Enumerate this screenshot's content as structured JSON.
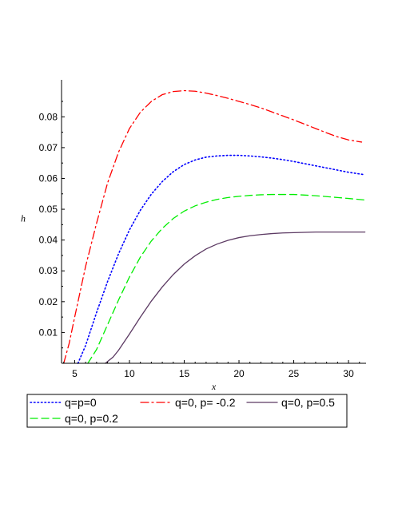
{
  "chart_data": {
    "type": "line",
    "xlabel": "x",
    "ylabel": "h",
    "xlim": [
      3.8,
      31.6
    ],
    "ylim": [
      0,
      0.092
    ],
    "x_ticks": [
      5,
      10,
      15,
      20,
      25,
      30
    ],
    "y_ticks": [
      0.01,
      0.02,
      0.03,
      0.04,
      0.05,
      0.06,
      0.07,
      0.08
    ],
    "y_tick_labels": [
      "0.01",
      "0.02",
      "0.03",
      "0.04",
      "0.05",
      "0.06",
      "0.07",
      "0.08"
    ],
    "legend_position": "bottom",
    "series": [
      {
        "name": "q=p=0",
        "color": "#0000ff",
        "style": "dotted",
        "x": [
          5.3,
          6,
          7,
          8,
          9,
          10,
          11,
          12,
          13,
          14,
          15,
          16,
          17,
          18,
          19,
          20,
          21,
          22,
          23,
          24,
          25,
          26,
          27,
          28,
          29,
          30,
          31.5
        ],
        "y": [
          0,
          0.0058,
          0.0165,
          0.0265,
          0.0355,
          0.0433,
          0.0497,
          0.0549,
          0.059,
          0.0622,
          0.0645,
          0.066,
          0.0669,
          0.0673,
          0.0675,
          0.0675,
          0.0673,
          0.067,
          0.0666,
          0.0661,
          0.0655,
          0.0648,
          0.0641,
          0.0634,
          0.0627,
          0.062,
          0.0612
        ]
      },
      {
        "name": "q=0, p= -0.2",
        "color": "#ff0000",
        "style": "dashdot",
        "x": [
          4.0,
          4.5,
          5,
          6,
          7,
          8,
          9,
          10,
          11,
          12,
          13,
          14,
          15,
          16,
          17,
          18,
          19,
          20,
          21,
          22,
          23,
          24,
          25,
          26,
          27,
          28,
          29,
          30,
          31.2
        ],
        "y": [
          0,
          0.0065,
          0.015,
          0.0315,
          0.0455,
          0.0585,
          0.0685,
          0.0762,
          0.0815,
          0.085,
          0.0872,
          0.0882,
          0.0885,
          0.0883,
          0.0877,
          0.0869,
          0.086,
          0.085,
          0.084,
          0.0829,
          0.0816,
          0.0803,
          0.079,
          0.0776,
          0.0762,
          0.0748,
          0.0735,
          0.0725,
          0.0718
        ]
      },
      {
        "name": "q=0, p=0.5",
        "color": "#5c3a63",
        "style": "solid",
        "x": [
          7.8,
          8.5,
          9,
          10,
          11,
          12,
          13,
          14,
          15,
          16,
          17,
          18,
          19,
          20,
          21,
          22,
          23,
          24,
          25,
          26,
          27,
          28,
          29,
          30,
          31.5
        ],
        "y": [
          0,
          0.002,
          0.0042,
          0.0095,
          0.015,
          0.0202,
          0.0248,
          0.0288,
          0.0322,
          0.0349,
          0.0371,
          0.0387,
          0.0399,
          0.0408,
          0.0414,
          0.0418,
          0.0421,
          0.0423,
          0.0424,
          0.0425,
          0.0426,
          0.0426,
          0.0426,
          0.0426,
          0.0426
        ]
      },
      {
        "name": "q=0, p=0.2",
        "color": "#00ee00",
        "style": "dashed",
        "x": [
          6.2,
          7,
          8,
          9,
          10,
          11,
          12,
          13,
          14,
          15,
          16,
          17,
          18,
          19,
          20,
          21,
          22,
          23,
          24,
          25,
          26,
          27,
          28,
          29,
          30,
          31.5
        ],
        "y": [
          0,
          0.0045,
          0.0125,
          0.0205,
          0.028,
          0.0345,
          0.0397,
          0.0438,
          0.047,
          0.0494,
          0.0511,
          0.0523,
          0.0532,
          0.0538,
          0.0542,
          0.0545,
          0.0547,
          0.0548,
          0.0548,
          0.0548,
          0.0546,
          0.0544,
          0.0541,
          0.0538,
          0.0535,
          0.053
        ]
      }
    ]
  }
}
